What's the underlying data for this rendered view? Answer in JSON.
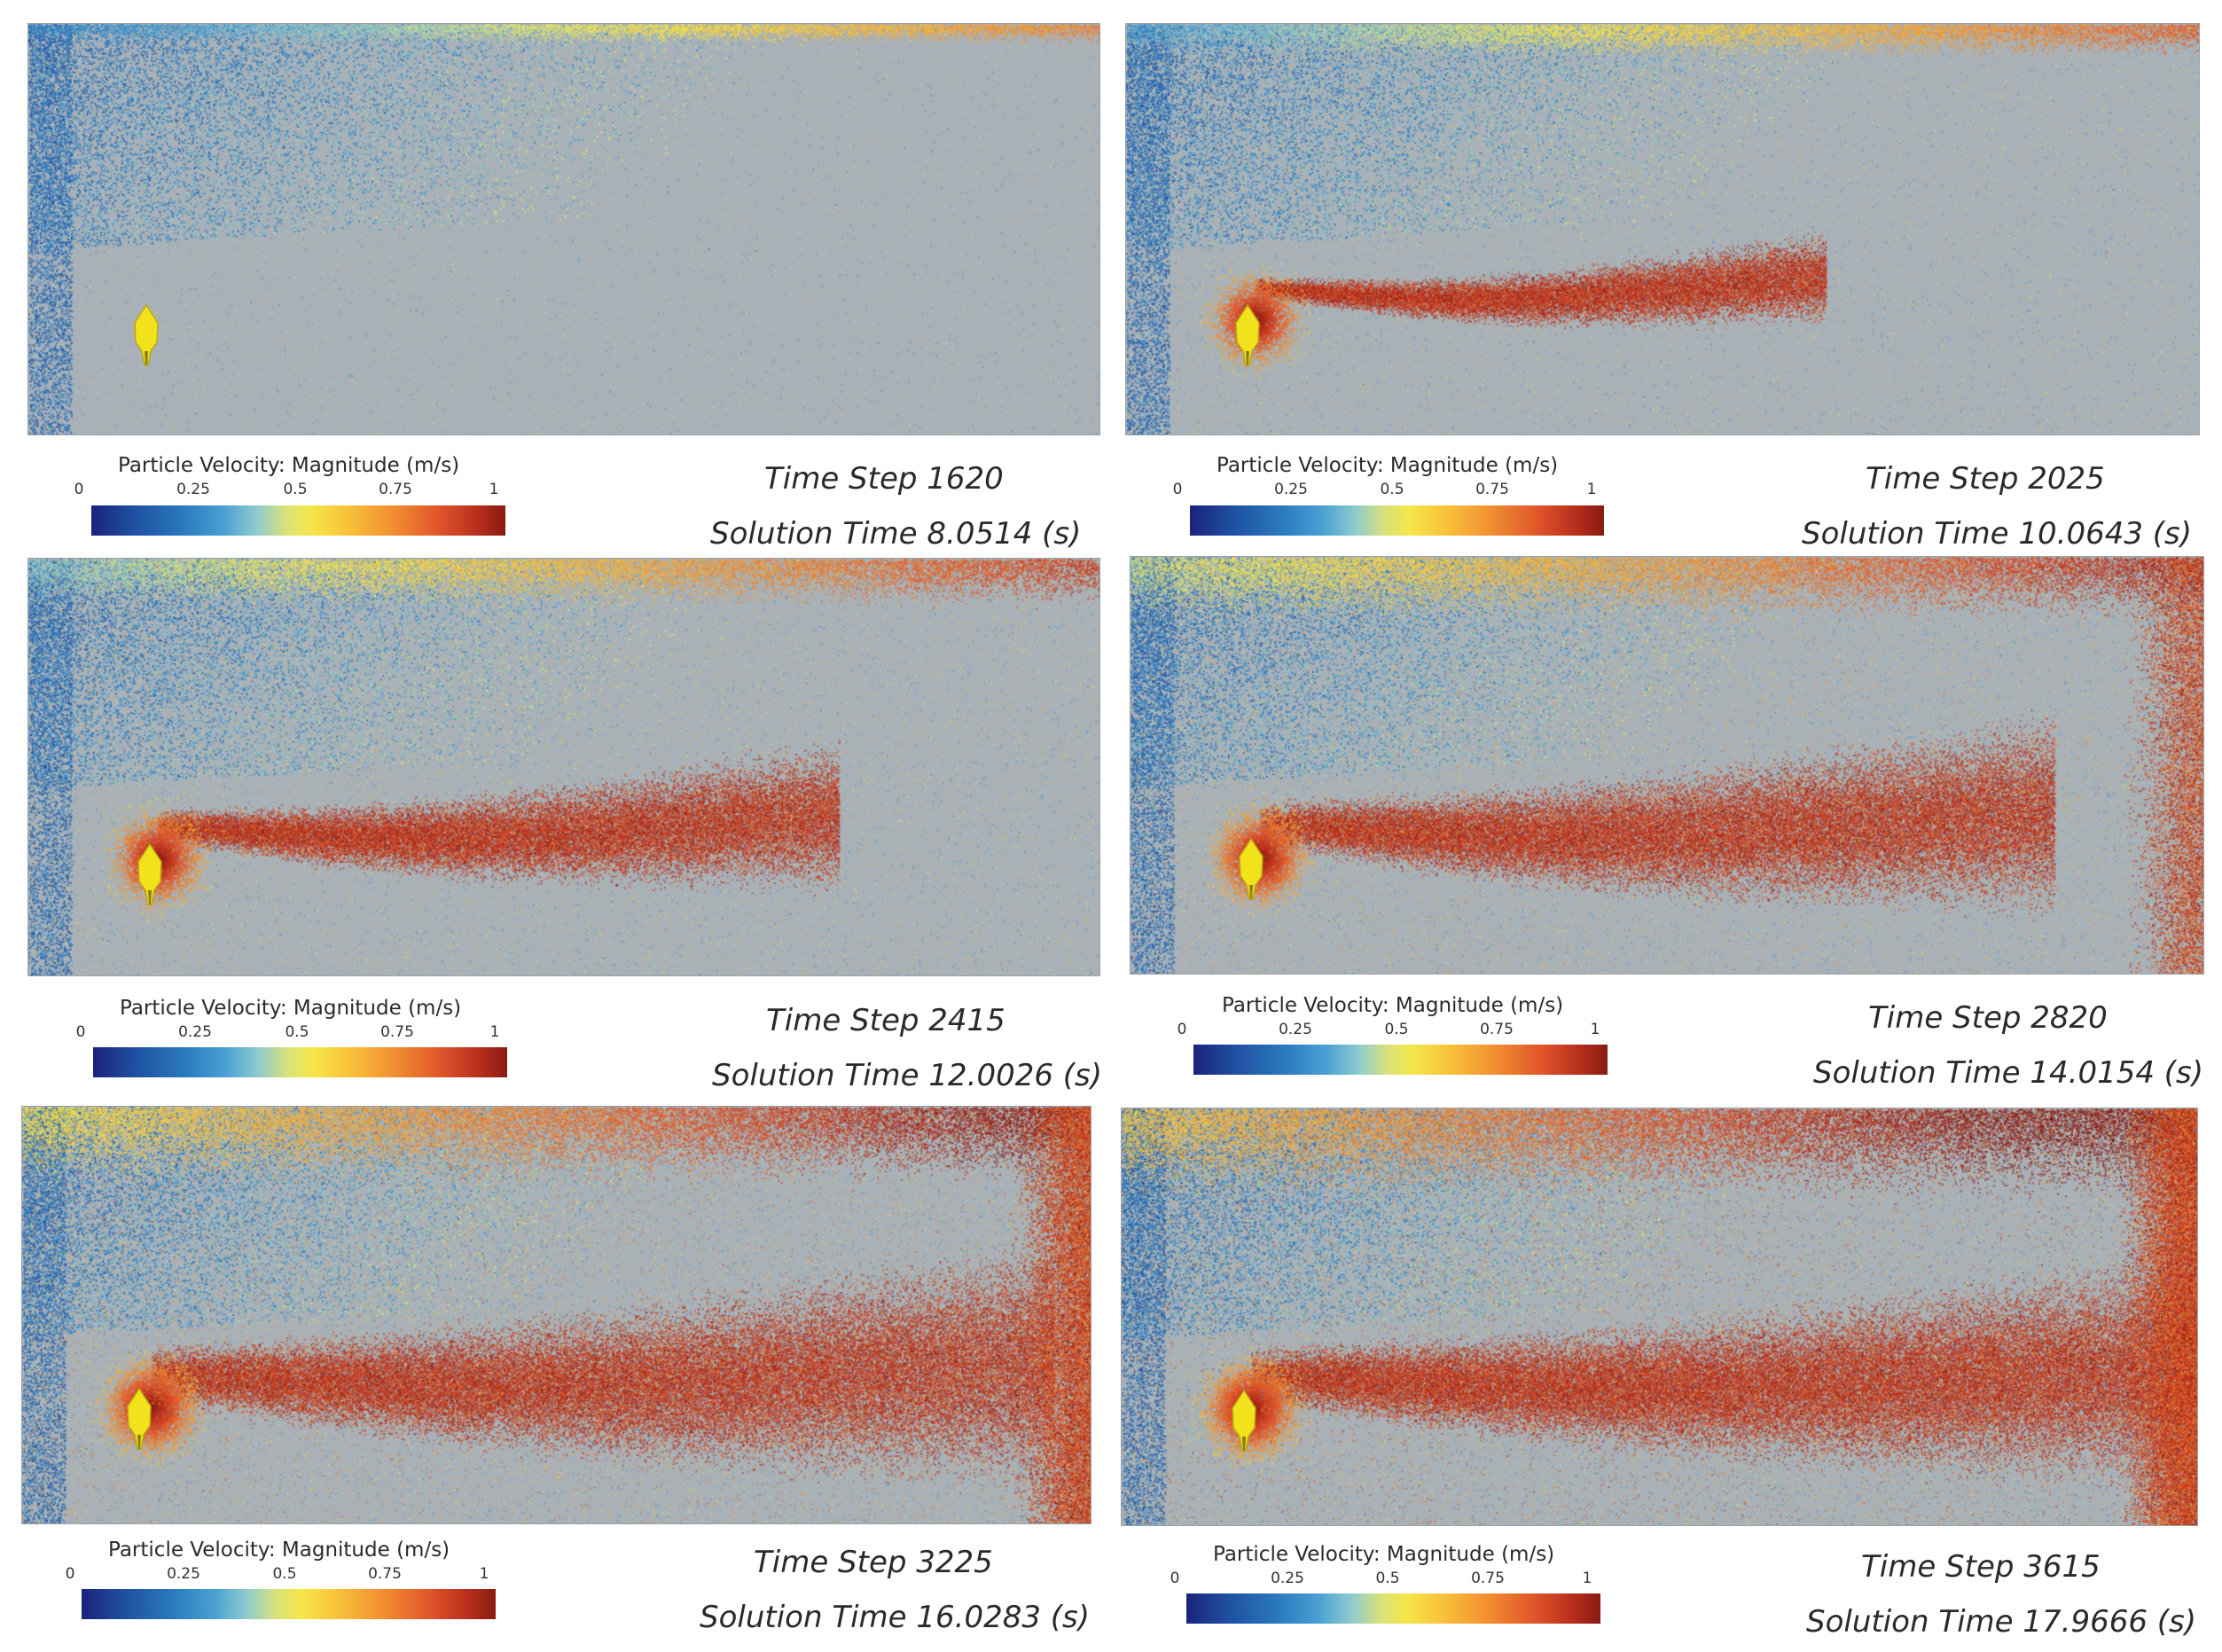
{
  "legend": {
    "title": "Particle Velocity: Magnitude (m/s)",
    "ticks": [
      "0",
      "0.25",
      "0.5",
      "0.75",
      "1"
    ]
  },
  "colors": {
    "background": "#a9b1b7",
    "particle": "#f2e21c",
    "low_velocity": "#1a237e",
    "high_velocity": "#8a1a12"
  },
  "panels": [
    {
      "time_step": "Time Step 1620",
      "solution_time": "Solution Time 8.0514 (s)",
      "development": 0.0
    },
    {
      "time_step": "Time Step 2025",
      "solution_time": "Solution Time 10.0643 (s)",
      "development": 0.2
    },
    {
      "time_step": "Time Step 2415",
      "solution_time": "Solution Time 12.0026 (s)",
      "development": 0.4
    },
    {
      "time_step": "Time Step 2820",
      "solution_time": "Solution Time 14.0154 (s)",
      "development": 0.6
    },
    {
      "time_step": "Time Step 3225",
      "solution_time": "Solution Time 16.0283 (s)",
      "development": 0.8
    },
    {
      "time_step": "Time Step 3615",
      "solution_time": "Solution Time 17.9666 (s)",
      "development": 1.0
    }
  ]
}
